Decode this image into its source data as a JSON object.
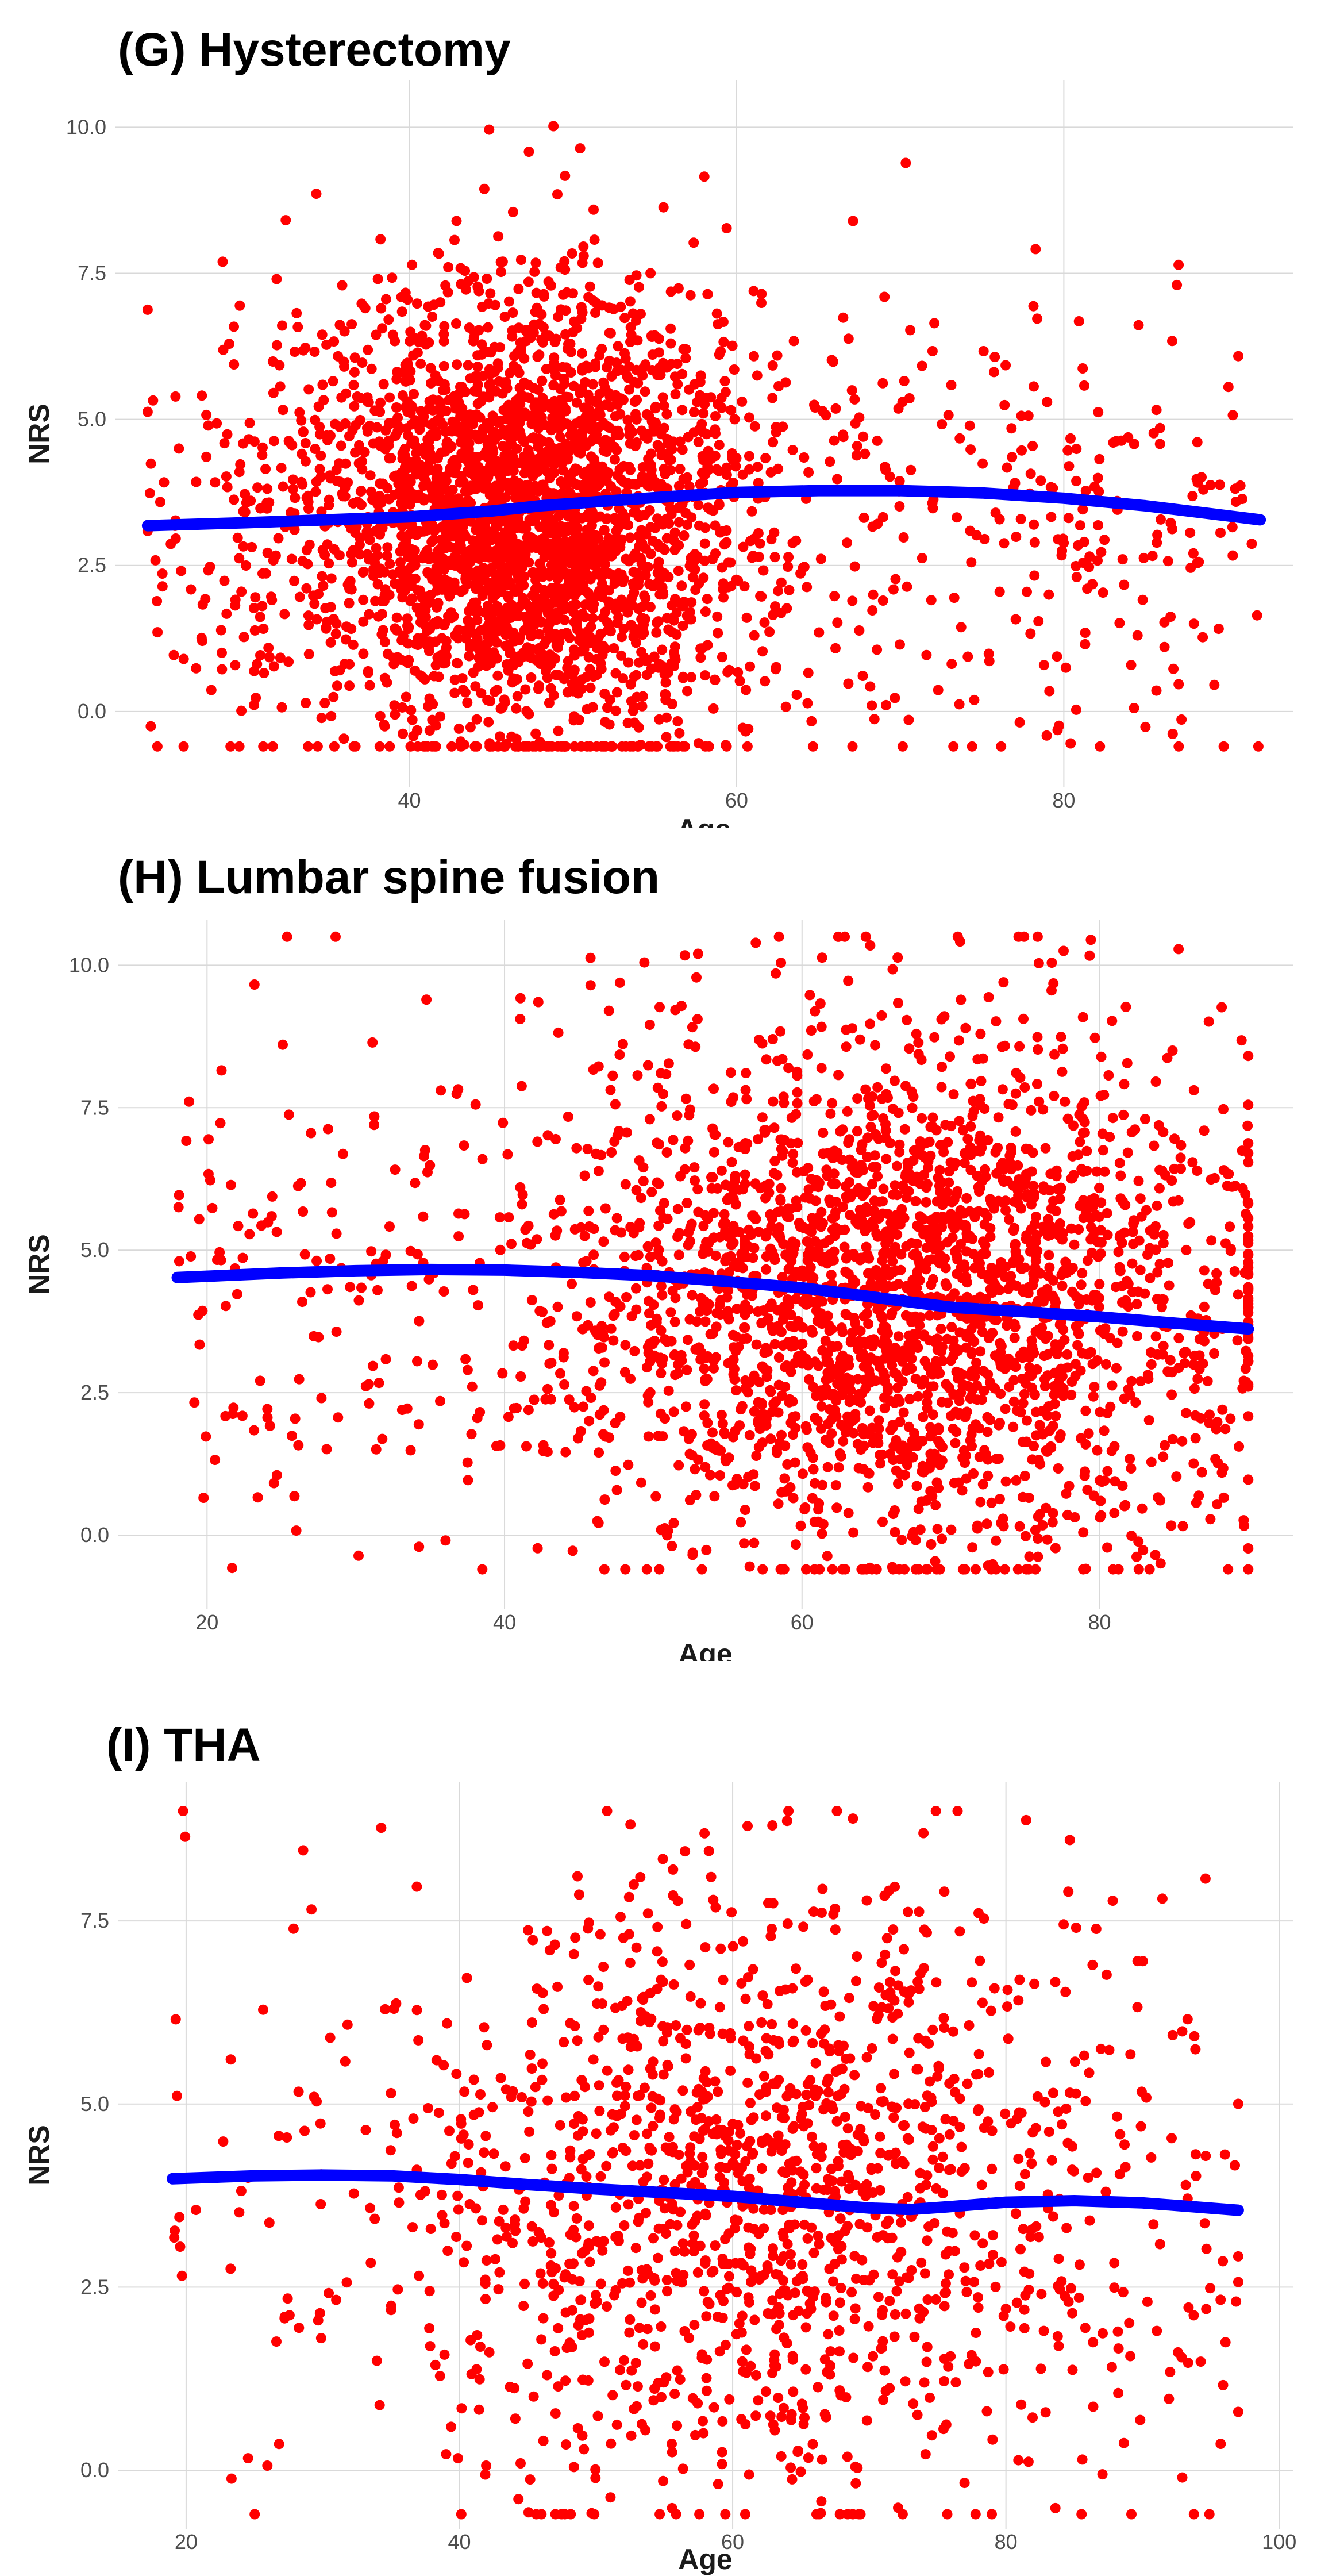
{
  "colors": {
    "points": "#ff0000",
    "smooth": "#0000ff",
    "grid": "#d9d9d9",
    "tick_text": "#4d4d4d",
    "background": "#ffffff"
  },
  "chart_data": [
    {
      "type": "scatter",
      "title": "(G) Hysterectomy",
      "xlabel": "Age",
      "ylabel": "NRS",
      "xlim": [
        22,
        94
      ],
      "ylim": [
        -1.3,
        10.8
      ],
      "xticks": [
        40,
        60,
        80
      ],
      "xtick_labels": [
        "40",
        "60",
        "80"
      ],
      "yticks": [
        0,
        2.5,
        5,
        7.5,
        10
      ],
      "ytick_labels": [
        "0.0",
        "2.5",
        "5.0",
        "7.5",
        "10.0"
      ],
      "point_count_approx": 3200,
      "age_distribution": {
        "min": 24,
        "max": 92,
        "mode": 47,
        "spread": 7
      },
      "nrs_distribution": {
        "min": -0.6,
        "max": 10.5,
        "center": 3.3,
        "spread": 2.0
      },
      "smooth_line": {
        "x": [
          24,
          30,
          35,
          40,
          45,
          48,
          52,
          56,
          60,
          65,
          70,
          75,
          80,
          85,
          92
        ],
        "y": [
          3.18,
          3.23,
          3.28,
          3.33,
          3.43,
          3.52,
          3.6,
          3.68,
          3.75,
          3.78,
          3.78,
          3.74,
          3.65,
          3.52,
          3.28
        ]
      }
    },
    {
      "type": "scatter",
      "title": "(H) Lumbar spine fusion",
      "xlabel": "Age",
      "ylabel": "NRS",
      "xlim": [
        14,
        93
      ],
      "ylim": [
        -1.3,
        10.8
      ],
      "xticks": [
        20,
        40,
        60,
        80
      ],
      "xtick_labels": [
        "20",
        "40",
        "60",
        "80"
      ],
      "yticks": [
        0,
        2.5,
        5,
        7.5,
        10
      ],
      "ytick_labels": [
        "0.0",
        "2.5",
        "5.0",
        "7.5",
        "10.0"
      ],
      "point_count_approx": 2700,
      "age_distribution": {
        "min": 18,
        "max": 90,
        "mode": 67,
        "spread": 11
      },
      "nrs_distribution": {
        "min": -0.6,
        "max": 10.5,
        "center": 4.2,
        "spread": 2.3
      },
      "smooth_line": {
        "x": [
          18,
          25,
          30,
          35,
          40,
          45,
          50,
          55,
          60,
          63,
          67,
          70,
          75,
          80,
          85,
          90
        ],
        "y": [
          4.52,
          4.6,
          4.64,
          4.66,
          4.65,
          4.61,
          4.55,
          4.45,
          4.34,
          4.24,
          4.1,
          4.0,
          3.92,
          3.83,
          3.72,
          3.62
        ]
      }
    },
    {
      "type": "scatter",
      "title": "(I) THA",
      "xlabel": "Age",
      "ylabel": "NRS",
      "xlim": [
        15,
        101
      ],
      "ylim": [
        -0.8,
        9.4
      ],
      "xticks": [
        20,
        40,
        60,
        80,
        100
      ],
      "xtick_labels": [
        "20",
        "40",
        "60",
        "80",
        "100"
      ],
      "yticks": [
        0,
        2.5,
        5,
        7.5
      ],
      "ytick_labels": [
        "0.0",
        "2.5",
        "5.0",
        "7.5"
      ],
      "point_count_approx": 1500,
      "age_distribution": {
        "min": 19,
        "max": 97,
        "mode": 62,
        "spread": 13
      },
      "nrs_distribution": {
        "min": -0.6,
        "max": 9.0,
        "center": 3.7,
        "spread": 2.0
      },
      "smooth_line": {
        "x": [
          19,
          25,
          30,
          35,
          40,
          45,
          50,
          55,
          60,
          65,
          70,
          73,
          76,
          80,
          85,
          90,
          97
        ],
        "y": [
          3.98,
          4.02,
          4.03,
          4.02,
          3.97,
          3.9,
          3.84,
          3.79,
          3.74,
          3.66,
          3.58,
          3.56,
          3.6,
          3.66,
          3.68,
          3.65,
          3.55
        ]
      }
    }
  ]
}
